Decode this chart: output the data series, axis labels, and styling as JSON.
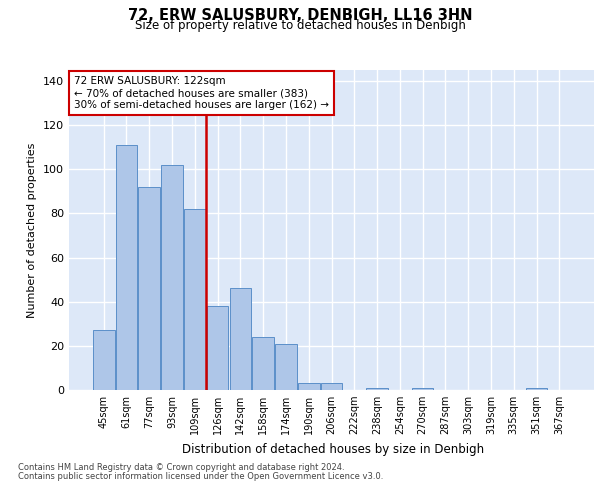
{
  "title": "72, ERW SALUSBURY, DENBIGH, LL16 3HN",
  "subtitle": "Size of property relative to detached houses in Denbigh",
  "xlabel": "Distribution of detached houses by size in Denbigh",
  "ylabel": "Number of detached properties",
  "categories": [
    "45sqm",
    "61sqm",
    "77sqm",
    "93sqm",
    "109sqm",
    "126sqm",
    "142sqm",
    "158sqm",
    "174sqm",
    "190sqm",
    "206sqm",
    "222sqm",
    "238sqm",
    "254sqm",
    "270sqm",
    "287sqm",
    "303sqm",
    "319sqm",
    "335sqm",
    "351sqm",
    "367sqm"
  ],
  "values": [
    27,
    111,
    92,
    102,
    82,
    38,
    46,
    24,
    21,
    3,
    3,
    0,
    1,
    0,
    1,
    0,
    0,
    0,
    0,
    1,
    0
  ],
  "bar_color": "#aec6e8",
  "bar_edge_color": "#5b8fc9",
  "vline_index": 5,
  "vline_color": "#cc0000",
  "annotation_text": "72 ERW SALUSBURY: 122sqm\n← 70% of detached houses are smaller (383)\n30% of semi-detached houses are larger (162) →",
  "annotation_box_color": "#ffffff",
  "annotation_box_edge_color": "#cc0000",
  "ylim": [
    0,
    145
  ],
  "yticks": [
    0,
    20,
    40,
    60,
    80,
    100,
    120,
    140
  ],
  "background_color": "#dde8f8",
  "grid_color": "#ffffff",
  "footer_line1": "Contains HM Land Registry data © Crown copyright and database right 2024.",
  "footer_line2": "Contains public sector information licensed under the Open Government Licence v3.0."
}
